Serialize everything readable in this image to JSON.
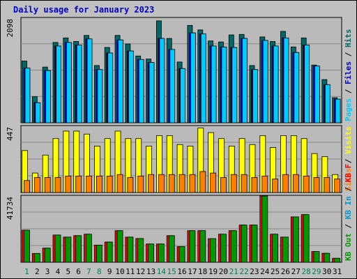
{
  "title": "Daily usage for January 2023",
  "colors": {
    "hits": "#006666",
    "files": "#0000cc",
    "pages": "#00ccff",
    "visits": "#ffff00",
    "sites": "#ff8000",
    "kb_in": "#0099cc",
    "kb_out": "#009900",
    "kb_f": "#ff0000",
    "panel_bg": "#bababa",
    "weekend": "#00805c",
    "weekday": "#006666"
  },
  "chart_data": [
    {
      "type": "bar",
      "title": "Daily usage for January 2023",
      "ymax_label": "2098",
      "ylim": [
        0,
        2098
      ],
      "legend": [
        {
          "text": "Hits",
          "color": "#006666"
        },
        {
          "text": "Files",
          "color": "#0000cc"
        },
        {
          "text": "Pages",
          "color": "#00ccff"
        }
      ],
      "categories": [
        "1",
        "2",
        "3",
        "4",
        "5",
        "6",
        "7",
        "8",
        "9",
        "10",
        "11",
        "12",
        "13",
        "14",
        "15",
        "16",
        "17",
        "18",
        "19",
        "20",
        "21",
        "22",
        "23",
        "24",
        "25",
        "26",
        "27",
        "28",
        "29",
        "30",
        "31"
      ],
      "series": [
        {
          "name": "Hits",
          "values": [
            1230,
            520,
            1110,
            1600,
            1690,
            1620,
            1740,
            1140,
            1500,
            1740,
            1570,
            1330,
            1270,
            2030,
            1680,
            1210,
            1940,
            1850,
            1630,
            1610,
            1750,
            1760,
            1140,
            1710,
            1620,
            1820,
            1510,
            1690,
            1150,
            860,
            500
          ]
        },
        {
          "name": "Files",
          "values": [
            1090,
            400,
            1040,
            1530,
            1600,
            1550,
            1670,
            1060,
            1390,
            1650,
            1430,
            1260,
            1200,
            1680,
            1460,
            1080,
            1790,
            1770,
            1530,
            1510,
            1500,
            1680,
            1060,
            1640,
            1530,
            1690,
            1400,
            1550,
            1130,
            760,
            470
          ]
        },
        {
          "name": "Pages",
          "values": [
            1090,
            400,
            1040,
            1530,
            1600,
            1550,
            1670,
            1060,
            1390,
            1650,
            1430,
            1260,
            1200,
            1680,
            1460,
            1080,
            1790,
            1770,
            1530,
            1510,
            1500,
            1680,
            1060,
            1640,
            1530,
            1690,
            1400,
            1550,
            1130,
            760,
            470
          ]
        }
      ]
    },
    {
      "type": "bar",
      "ymax_label": "447",
      "ylim": [
        0,
        447
      ],
      "legend": [
        {
          "text": "Visits",
          "color": "#ffff00"
        },
        {
          "text": "Sites",
          "color": "#ff8000"
        }
      ],
      "categories": [
        "1",
        "2",
        "3",
        "4",
        "5",
        "6",
        "7",
        "8",
        "9",
        "10",
        "11",
        "12",
        "13",
        "14",
        "15",
        "16",
        "17",
        "18",
        "19",
        "20",
        "21",
        "22",
        "23",
        "24",
        "25",
        "26",
        "27",
        "28",
        "29",
        "30",
        "31"
      ],
      "series": [
        {
          "name": "Visits",
          "values": [
            280,
            130,
            250,
            360,
            410,
            410,
            390,
            310,
            360,
            410,
            360,
            360,
            310,
            380,
            380,
            320,
            310,
            430,
            400,
            360,
            310,
            360,
            320,
            380,
            300,
            380,
            380,
            360,
            260,
            240,
            120
          ]
        },
        {
          "name": "Sites",
          "values": [
            80,
            100,
            100,
            100,
            110,
            110,
            110,
            110,
            110,
            120,
            100,
            110,
            120,
            120,
            120,
            120,
            120,
            140,
            130,
            100,
            120,
            120,
            100,
            110,
            90,
            120,
            120,
            110,
            100,
            100,
            90
          ]
        }
      ]
    },
    {
      "type": "bar",
      "ymax_label": "41734",
      "ylim": [
        0,
        41734
      ],
      "legend": [
        {
          "text": "KB F",
          "color": "#ff0000"
        },
        {
          "text": "KB In",
          "color": "#0099cc"
        },
        {
          "text": "KB Out",
          "color": "#009900"
        }
      ],
      "categories": [
        "1",
        "2",
        "3",
        "4",
        "5",
        "6",
        "7",
        "8",
        "9",
        "10",
        "11",
        "12",
        "13",
        "14",
        "15",
        "16",
        "17",
        "18",
        "19",
        "20",
        "21",
        "22",
        "23",
        "24",
        "25",
        "26",
        "27",
        "28",
        "29",
        "30",
        "31"
      ],
      "series": [
        {
          "name": "KB F",
          "values": [
            20000,
            5500,
            8800,
            17000,
            15700,
            16600,
            17500,
            10700,
            12600,
            19700,
            15700,
            14800,
            11400,
            11400,
            16600,
            9800,
            19700,
            19700,
            14700,
            17500,
            19700,
            23200,
            23200,
            41700,
            17500,
            15700,
            28300,
            29700,
            6700,
            5600,
            2500
          ]
        },
        {
          "name": "KB In",
          "values": [
            0,
            0,
            0,
            0,
            0,
            0,
            0,
            0,
            0,
            0,
            0,
            0,
            0,
            0,
            0,
            0,
            0,
            0,
            0,
            0,
            0,
            0,
            0,
            0,
            0,
            0,
            0,
            0,
            0,
            0,
            0
          ]
        },
        {
          "name": "KB Out",
          "values": [
            20000,
            5500,
            8800,
            17000,
            15700,
            16600,
            17500,
            10700,
            12600,
            19700,
            15700,
            14800,
            11400,
            11400,
            16600,
            9800,
            19700,
            19700,
            14700,
            17500,
            19700,
            23200,
            23200,
            41700,
            17500,
            15700,
            28300,
            29700,
            6700,
            5600,
            2500
          ]
        }
      ]
    }
  ]
}
